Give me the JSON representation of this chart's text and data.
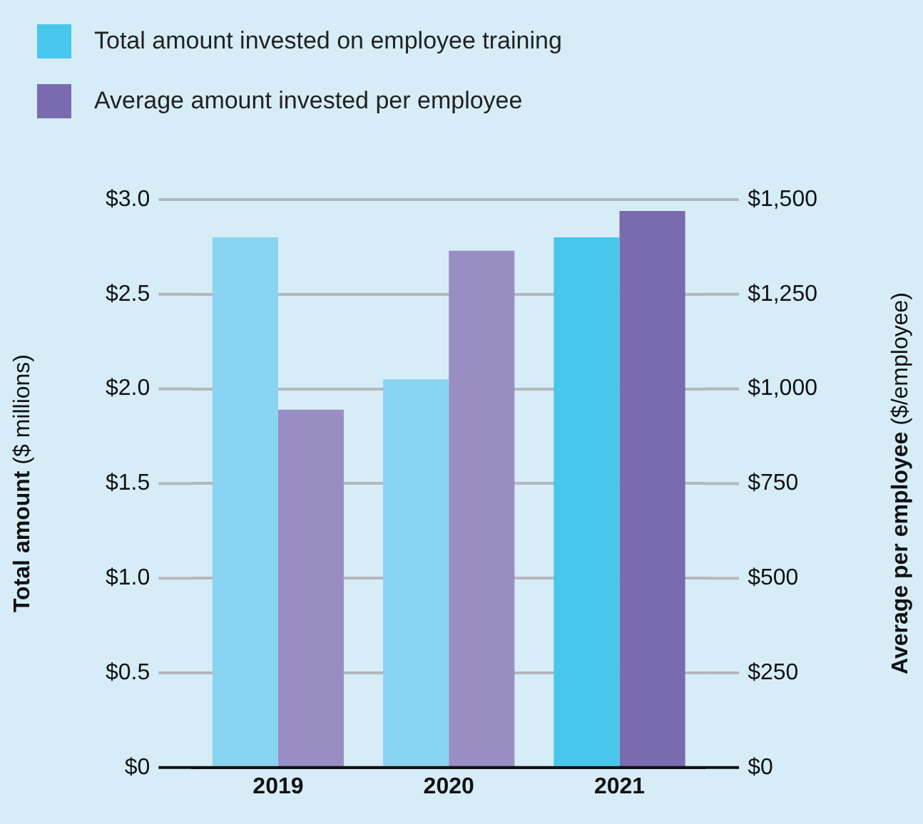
{
  "chart_data": {
    "type": "bar",
    "categories": [
      "2019",
      "2020",
      "2021"
    ],
    "series": [
      {
        "name": "Total amount invested on employee training",
        "color": "#48c6ec",
        "colors": [
          "#89d4f0",
          "#89d4f0",
          "#48c6ec"
        ],
        "values": [
          2.8,
          2.05,
          2.8
        ]
      },
      {
        "name": "Average amount invested per employee",
        "color": "#7a6aae",
        "colors": [
          "#998ec4",
          "#998ec4",
          "#7a6aae"
        ],
        "values": [
          945,
          1365,
          1470
        ],
        "axis": "y2"
      }
    ],
    "ylabel": "Total amount ($ millions)",
    "y2label": "Average per employee ($/employee)",
    "ylim": [
      0,
      3
    ],
    "yticks": [
      {
        "value": 0,
        "label": "$0"
      },
      {
        "value": 0.5,
        "label": "$0.5"
      },
      {
        "value": 1,
        "label": "$1.0"
      },
      {
        "value": 1.5,
        "label": "$1.5"
      },
      {
        "value": 2,
        "label": "$2.0"
      },
      {
        "value": 2.5,
        "label": "$2.5"
      },
      {
        "value": 3,
        "label": "$3.0"
      }
    ],
    "y2lim": [
      0,
      1500
    ],
    "y2ticks": [
      {
        "value": 0,
        "label": "$0"
      },
      {
        "value": 250,
        "label": "$250"
      },
      {
        "value": 500,
        "label": "$500"
      },
      {
        "value": 750,
        "label": "$750"
      },
      {
        "value": 1000,
        "label": "$1,000"
      },
      {
        "value": 1250,
        "label": "$1,250"
      },
      {
        "value": 1500,
        "label": "$1,500"
      }
    ],
    "grid": "y",
    "legend": "top left"
  }
}
